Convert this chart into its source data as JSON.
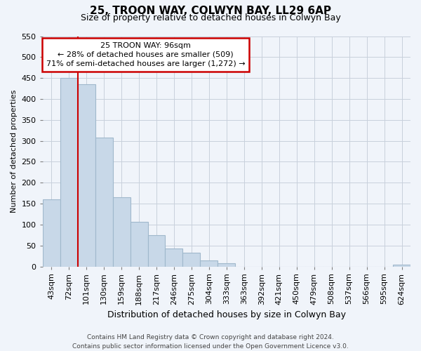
{
  "title": "25, TROON WAY, COLWYN BAY, LL29 6AP",
  "subtitle": "Size of property relative to detached houses in Colwyn Bay",
  "xlabel": "Distribution of detached houses by size in Colwyn Bay",
  "ylabel": "Number of detached properties",
  "footer_lines": [
    "Contains HM Land Registry data © Crown copyright and database right 2024.",
    "Contains public sector information licensed under the Open Government Licence v3.0."
  ],
  "bin_labels": [
    "43sqm",
    "72sqm",
    "101sqm",
    "130sqm",
    "159sqm",
    "188sqm",
    "217sqm",
    "246sqm",
    "275sqm",
    "304sqm",
    "333sqm",
    "363sqm",
    "392sqm",
    "421sqm",
    "450sqm",
    "479sqm",
    "508sqm",
    "537sqm",
    "566sqm",
    "595sqm",
    "624sqm"
  ],
  "bar_heights": [
    160,
    450,
    435,
    308,
    165,
    107,
    74,
    43,
    33,
    15,
    8,
    0,
    0,
    0,
    0,
    0,
    0,
    0,
    0,
    0,
    4
  ],
  "bar_color": "#c8d8e8",
  "bar_edge_color": "#a0b8cc",
  "marker_label": "25 TROON WAY: 96sqm",
  "annotation_line1": "← 28% of detached houses are smaller (509)",
  "annotation_line2": "71% of semi-detached houses are larger (1,272) →",
  "annotation_box_color": "#ffffff",
  "annotation_box_edge": "#cc0000",
  "marker_line_color": "#cc0000",
  "ylim": [
    0,
    550
  ],
  "yticks": [
    0,
    50,
    100,
    150,
    200,
    250,
    300,
    350,
    400,
    450,
    500,
    550
  ],
  "grid_color": "#c8d0dc",
  "bg_color": "#f0f4fa",
  "title_fontsize": 11,
  "subtitle_fontsize": 9,
  "xlabel_fontsize": 9,
  "ylabel_fontsize": 8,
  "tick_fontsize": 8,
  "footer_fontsize": 6.5
}
